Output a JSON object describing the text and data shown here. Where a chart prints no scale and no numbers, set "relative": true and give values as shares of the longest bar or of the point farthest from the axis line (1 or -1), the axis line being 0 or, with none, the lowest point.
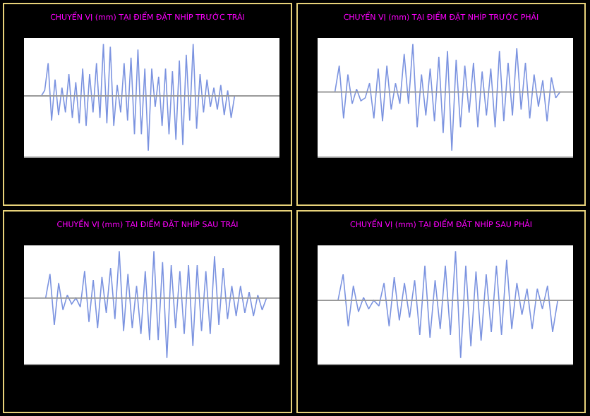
{
  "chart_data": [
    {
      "type": "line",
      "title": "CHUYỂN VỊ (mm) TẠI ĐIỂM ĐẶT NHÍP TRƯỚC TRÁI",
      "relative": true,
      "color": "#7b93e0",
      "categories": [
        null,
        null,
        null,
        null,
        null,
        null,
        null,
        null,
        null,
        null,
        null,
        null,
        null,
        null,
        null,
        null,
        null,
        null,
        null,
        null,
        null,
        null,
        null,
        null,
        null,
        null,
        null,
        null,
        null,
        null,
        null,
        null,
        null,
        null,
        null,
        null,
        null,
        null,
        null,
        null,
        null,
        null,
        null,
        null,
        null,
        null,
        null,
        null,
        null,
        null,
        null,
        null,
        null,
        null,
        null,
        null,
        null,
        null,
        null,
        null,
        null,
        null,
        null,
        null,
        null,
        null,
        null,
        null,
        null,
        null,
        null,
        null,
        null
      ],
      "values": [
        null,
        null,
        null,
        null,
        0,
        0.1,
        0.6,
        -0.45,
        0.3,
        -0.35,
        0.15,
        -0.3,
        0.4,
        -0.4,
        0.25,
        -0.5,
        0.5,
        -0.55,
        0.4,
        -0.3,
        0.6,
        -0.4,
        0.95,
        -0.5,
        0.9,
        -0.55,
        0.2,
        -0.3,
        0.6,
        -0.45,
        0.7,
        -0.7,
        0.85,
        -0.7,
        0.5,
        -1,
        0.5,
        -0.2,
        0.35,
        -0.55,
        0.5,
        -0.7,
        0.45,
        -0.8,
        0.65,
        -0.9,
        0.75,
        -0.45,
        0.95,
        -0.6,
        0.4,
        -0.3,
        0.3,
        -0.2,
        0.15,
        -0.25,
        0.2,
        -0.35,
        0.1,
        -0.4,
        0,
        null,
        null,
        null,
        null,
        null,
        null,
        null,
        null,
        null,
        null,
        null,
        null
      ]
    },
    {
      "type": "line",
      "title": "CHUYỂN VỊ (mm) TẠI ĐIỂM ĐẶT NHÍP TRƯỚC PHẢI",
      "relative": true,
      "color": "#7b93e0",
      "categories": [
        null,
        null,
        null,
        null,
        null,
        null,
        null,
        null,
        null,
        null,
        null,
        null,
        null,
        null,
        null,
        null,
        null,
        null,
        null,
        null,
        null,
        null,
        null,
        null,
        null,
        null,
        null,
        null,
        null,
        null,
        null,
        null,
        null,
        null,
        null,
        null,
        null,
        null,
        null,
        null,
        null,
        null,
        null,
        null,
        null,
        null,
        null,
        null,
        null,
        null,
        null,
        null,
        null,
        null,
        null,
        null,
        null,
        null
      ],
      "values": [
        null,
        null,
        null,
        0,
        0.45,
        -0.45,
        0.3,
        -0.2,
        0.05,
        -0.15,
        -0.1,
        0.15,
        -0.45,
        0.4,
        -0.5,
        0.45,
        -0.3,
        0.15,
        -0.2,
        0.65,
        -0.2,
        0.82,
        -0.6,
        0.3,
        -0.4,
        0.4,
        -0.5,
        0.6,
        -0.7,
        0.7,
        -1,
        0.55,
        -0.6,
        0.45,
        -0.35,
        0.5,
        -0.6,
        0.35,
        -0.4,
        0.4,
        -0.6,
        0.7,
        -0.5,
        0.5,
        -0.4,
        0.75,
        -0.3,
        0.5,
        -0.45,
        0.3,
        -0.25,
        0.2,
        -0.5,
        0.25,
        -0.1,
        0,
        null,
        null
      ]
    },
    {
      "type": "line",
      "title": "CHUYỂN VỊ (mm) TẠI ĐIỂM ĐẶT NHÍP SAU TRÁI",
      "relative": true,
      "color": "#7b93e0",
      "categories": [
        null,
        null,
        null,
        null,
        null,
        null,
        null,
        null,
        null,
        null,
        null,
        null,
        null,
        null,
        null,
        null,
        null,
        null,
        null,
        null,
        null,
        null,
        null,
        null,
        null,
        null,
        null,
        null,
        null,
        null,
        null,
        null,
        null,
        null,
        null,
        null,
        null,
        null,
        null,
        null,
        null,
        null,
        null,
        null,
        null,
        null,
        null,
        null,
        null,
        null,
        null,
        null,
        null,
        null,
        null,
        null,
        null,
        null
      ],
      "values": [
        null,
        null,
        null,
        null,
        0,
        0.4,
        -0.45,
        0.25,
        -0.2,
        0.05,
        -0.1,
        0,
        -0.15,
        0.45,
        -0.4,
        0.3,
        -0.5,
        0.35,
        -0.25,
        0.5,
        -0.35,
        0.78,
        -0.55,
        0.4,
        -0.5,
        0.2,
        -0.6,
        0.45,
        -0.7,
        0.78,
        -0.7,
        0.6,
        -1,
        0.55,
        -0.5,
        0.45,
        -0.6,
        0.55,
        -0.8,
        0.55,
        -0.55,
        0.45,
        -0.6,
        0.7,
        -0.45,
        0.5,
        -0.35,
        0.2,
        -0.3,
        0.2,
        -0.25,
        0.1,
        -0.3,
        0.05,
        -0.2,
        0,
        null,
        null
      ]
    },
    {
      "type": "line",
      "title": "CHUYỂN VỊ (mm) TẠI ĐIỂM ĐẶT NHÍP SAU PHẢI",
      "relative": true,
      "color": "#7b93e0",
      "categories": [
        null,
        null,
        null,
        null,
        null,
        null,
        null,
        null,
        null,
        null,
        null,
        null,
        null,
        null,
        null,
        null,
        null,
        null,
        null,
        null,
        null,
        null,
        null,
        null,
        null,
        null,
        null,
        null,
        null,
        null,
        null,
        null,
        null,
        null,
        null,
        null,
        null,
        null,
        null,
        null,
        null,
        null,
        null,
        null,
        null,
        null,
        null,
        null,
        null
      ],
      "values": [
        null,
        null,
        null,
        0,
        0.45,
        -0.45,
        0.25,
        -0.2,
        0.05,
        -0.15,
        0,
        -0.1,
        0.3,
        -0.45,
        0.4,
        -0.35,
        0.3,
        -0.3,
        0.35,
        -0.6,
        0.6,
        -0.65,
        0.35,
        -0.5,
        0.6,
        -0.6,
        0.85,
        -1,
        0.6,
        -0.8,
        0.5,
        -0.7,
        0.45,
        -0.55,
        0.6,
        -0.6,
        0.7,
        -0.5,
        0.3,
        -0.25,
        0.2,
        -0.5,
        0.2,
        -0.15,
        0.25,
        -0.55,
        0,
        null,
        null
      ]
    }
  ]
}
